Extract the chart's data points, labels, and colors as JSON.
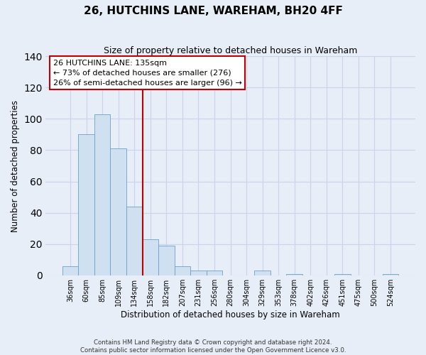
{
  "title": "26, HUTCHINS LANE, WAREHAM, BH20 4FF",
  "subtitle": "Size of property relative to detached houses in Wareham",
  "xlabel": "Distribution of detached houses by size in Wareham",
  "ylabel": "Number of detached properties",
  "bar_labels": [
    "36sqm",
    "60sqm",
    "85sqm",
    "109sqm",
    "134sqm",
    "158sqm",
    "182sqm",
    "207sqm",
    "231sqm",
    "256sqm",
    "280sqm",
    "304sqm",
    "329sqm",
    "353sqm",
    "378sqm",
    "402sqm",
    "426sqm",
    "451sqm",
    "475sqm",
    "500sqm",
    "524sqm"
  ],
  "bar_values": [
    6,
    90,
    103,
    81,
    44,
    23,
    19,
    6,
    3,
    3,
    0,
    0,
    3,
    0,
    1,
    0,
    0,
    1,
    0,
    0,
    1
  ],
  "bar_color": "#cfe0f0",
  "bar_edge_color": "#6ca0c8",
  "vline_index": 4,
  "vline_color": "#c00000",
  "annotation_title": "26 HUTCHINS LANE: 135sqm",
  "annotation_line1": "← 73% of detached houses are smaller (276)",
  "annotation_line2": "26% of semi-detached houses are larger (96) →",
  "annotation_box_facecolor": "#ffffff",
  "annotation_box_edgecolor": "#c00000",
  "ylim": [
    0,
    140
  ],
  "yticks": [
    0,
    20,
    40,
    60,
    80,
    100,
    120,
    140
  ],
  "footnote1": "Contains HM Land Registry data © Crown copyright and database right 2024.",
  "footnote2": "Contains public sector information licensed under the Open Government Licence v3.0.",
  "bg_color": "#e8eef8",
  "plot_bg_color": "#e8eef8",
  "grid_color": "#c8d4e8"
}
